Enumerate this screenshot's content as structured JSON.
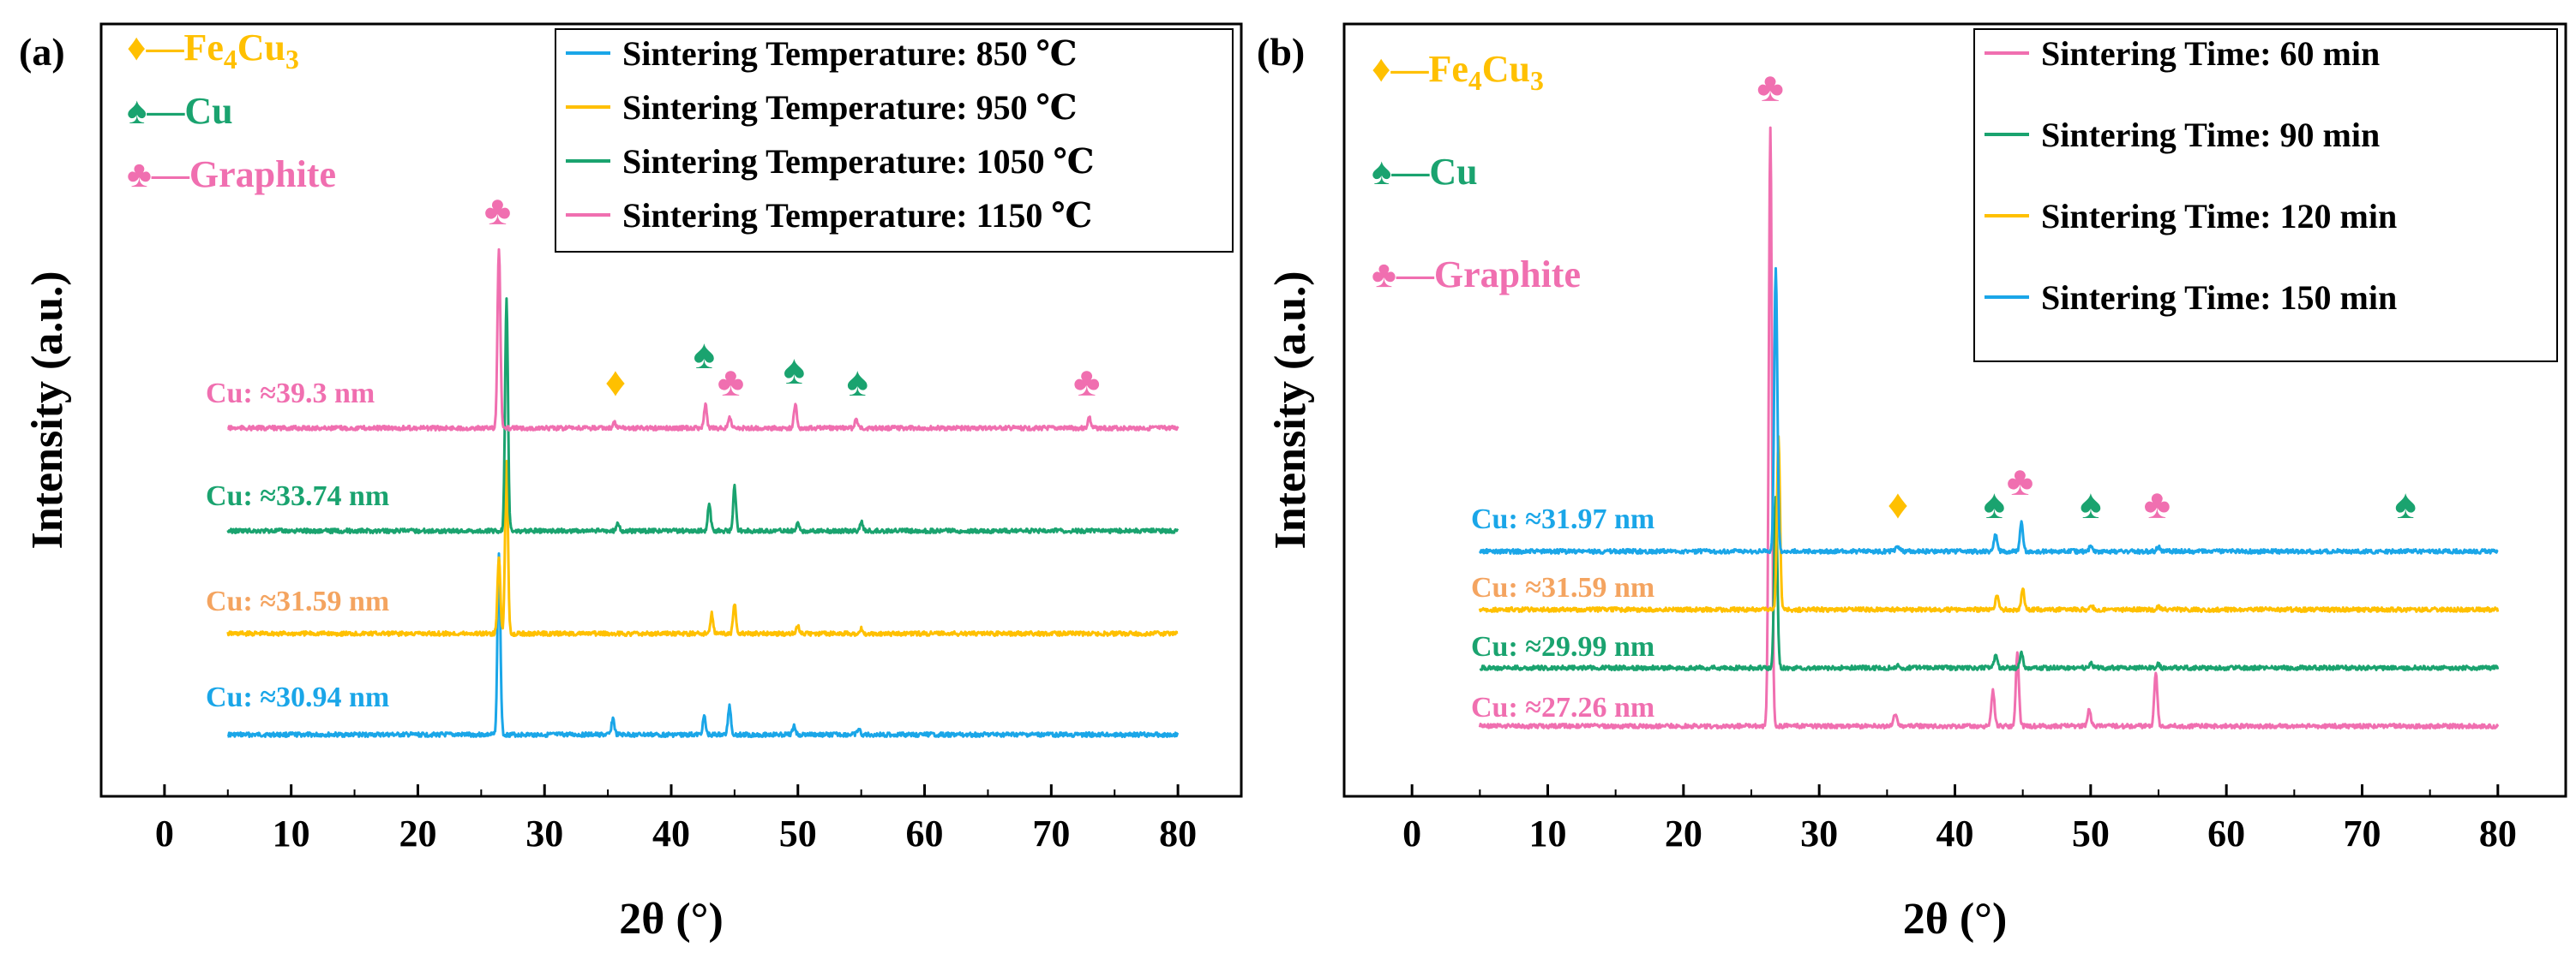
{
  "chart_data": [
    {
      "panel_label": "(a)",
      "type": "line",
      "xlabel": "2θ (°)",
      "ylabel": "Intensity (a.u.)",
      "xlim": [
        -5,
        85
      ],
      "xticks": [
        0,
        10,
        20,
        30,
        40,
        50,
        60,
        70,
        80
      ],
      "x_range": [
        5,
        80
      ],
      "phase_legend": [
        {
          "symbol": "♦",
          "label": "—Fe",
          "sub": "4",
          "label2": "Cu",
          "sub2": "3",
          "color": "#ffc000"
        },
        {
          "symbol": "♠",
          "label": "—Cu",
          "color": "#1aa36f"
        },
        {
          "symbol": "♣",
          "label": "—Graphite",
          "color": "#f06fb0"
        }
      ],
      "series": [
        {
          "name": "Sintering Temperature: 850 ℃",
          "color": "#1aa6e8",
          "annotation": "Cu: ≈30.94 nm",
          "annotation_color": "#1aa6e8",
          "peaks": [
            [
              26.4,
              1.0
            ],
            [
              35.4,
              0.09
            ],
            [
              42.6,
              0.1
            ],
            [
              44.6,
              0.16
            ],
            [
              49.7,
              0.05
            ],
            [
              54.8,
              0.03
            ]
          ]
        },
        {
          "name": "Sintering Temperature: 950 ℃",
          "color": "#ffc000",
          "annotation": "Cu: ≈31.59 nm",
          "annotation_color": "#f4a460",
          "peaks": [
            [
              26.4,
              0.42
            ],
            [
              27.0,
              0.95
            ],
            [
              43.2,
              0.11
            ],
            [
              45.0,
              0.17
            ],
            [
              50.0,
              0.04
            ],
            [
              55.0,
              0.03
            ]
          ]
        },
        {
          "name": "Sintering Temperature: 1050 ℃",
          "color": "#1aa36f",
          "annotation": "Cu: ≈33.74 nm",
          "annotation_color": "#1aa36f",
          "peaks": [
            [
              27.0,
              1.0
            ],
            [
              35.8,
              0.03
            ],
            [
              43.0,
              0.12
            ],
            [
              45.0,
              0.19
            ],
            [
              50.0,
              0.03
            ],
            [
              55.0,
              0.04
            ]
          ]
        },
        {
          "name": "Sintering Temperature: 1150 ℃",
          "color": "#f06fb0",
          "annotation": "Cu: ≈39.3 nm",
          "annotation_color": "#f06fb0",
          "peaks": [
            [
              26.4,
              1.0
            ],
            [
              35.5,
              0.03
            ],
            [
              42.7,
              0.13
            ],
            [
              44.6,
              0.06
            ],
            [
              49.8,
              0.13
            ],
            [
              54.6,
              0.05
            ],
            [
              73.0,
              0.06
            ]
          ]
        }
      ],
      "markers": [
        {
          "symbol": "♣",
          "x": 26.3,
          "color": "#f06fb0",
          "level": "top"
        },
        {
          "symbol": "♦",
          "x": 35.6,
          "color": "#ffc000",
          "level": "low"
        },
        {
          "symbol": "♠",
          "x": 42.6,
          "color": "#1aa36f",
          "level": "high"
        },
        {
          "symbol": "♣",
          "x": 44.7,
          "color": "#f06fb0",
          "level": "low"
        },
        {
          "symbol": "♠",
          "x": 49.7,
          "color": "#1aa36f",
          "level": "mid"
        },
        {
          "symbol": "♠",
          "x": 54.7,
          "color": "#1aa36f",
          "level": "low"
        },
        {
          "symbol": "♣",
          "x": 72.8,
          "color": "#f06fb0",
          "level": "low"
        }
      ]
    },
    {
      "panel_label": "(b)",
      "type": "line",
      "xlabel": "2θ (°)",
      "ylabel": "Intensity (a.u.)",
      "xlim": [
        -5,
        85
      ],
      "xticks": [
        0,
        10,
        20,
        30,
        40,
        50,
        60,
        70,
        80
      ],
      "x_range": [
        5,
        80
      ],
      "phase_legend": [
        {
          "symbol": "♦",
          "label": "—Fe",
          "sub": "4",
          "label2": "Cu",
          "sub2": "3",
          "color": "#ffc000"
        },
        {
          "symbol": "♠",
          "label": "—Cu",
          "color": "#1aa36f"
        },
        {
          "symbol": "♣",
          "label": "—Graphite",
          "color": "#f06fb0"
        }
      ],
      "series": [
        {
          "name": "Sintering Time: 60 min",
          "color": "#f06fb0",
          "annotation": "Cu: ≈27.26 nm",
          "annotation_color": "#f06fb0",
          "peaks": [
            [
              26.4,
              1.0
            ],
            [
              35.6,
              0.02
            ],
            [
              42.8,
              0.06
            ],
            [
              44.6,
              0.12
            ],
            [
              49.9,
              0.03
            ],
            [
              54.8,
              0.09
            ]
          ]
        },
        {
          "name": "Sintering Time: 90 min",
          "color": "#1aa36f",
          "annotation": "Cu: ≈29.99 nm",
          "annotation_color": "#1aa36f",
          "peaks": [
            [
              26.8,
              1.0
            ],
            [
              35.8,
              0.02
            ],
            [
              43.0,
              0.07
            ],
            [
              44.9,
              0.09
            ],
            [
              50.0,
              0.03
            ],
            [
              55.0,
              0.02
            ]
          ]
        },
        {
          "name": "Sintering Time: 120 min",
          "color": "#ffc000",
          "annotation": "Cu: ≈31.59 nm",
          "annotation_color": "#f4a460",
          "peaks": [
            [
              27.0,
              1.0
            ],
            [
              43.1,
              0.08
            ],
            [
              45.0,
              0.12
            ],
            [
              50.1,
              0.02
            ],
            [
              55.0,
              0.02
            ]
          ]
        },
        {
          "name": "Sintering Time: 150 min",
          "color": "#1aa6e8",
          "annotation": "Cu: ≈31.97 nm",
          "annotation_color": "#1aa6e8",
          "peaks": [
            [
              26.8,
              1.0
            ],
            [
              35.8,
              0.02
            ],
            [
              43.0,
              0.06
            ],
            [
              44.9,
              0.1
            ],
            [
              50.0,
              0.02
            ],
            [
              55.0,
              0.02
            ]
          ]
        }
      ],
      "markers": [
        {
          "symbol": "♣",
          "x": 26.4,
          "color": "#f06fb0",
          "level": "top"
        },
        {
          "symbol": "♦",
          "x": 35.8,
          "color": "#ffc000",
          "level": "low"
        },
        {
          "symbol": "♠",
          "x": 42.9,
          "color": "#1aa36f",
          "level": "low"
        },
        {
          "symbol": "♣",
          "x": 44.8,
          "color": "#f06fb0",
          "level": "mid"
        },
        {
          "symbol": "♠",
          "x": 50.0,
          "color": "#1aa36f",
          "level": "low"
        },
        {
          "symbol": "♣",
          "x": 54.9,
          "color": "#f06fb0",
          "level": "low"
        },
        {
          "symbol": "♠",
          "x": 73.2,
          "color": "#1aa36f",
          "level": "low"
        }
      ]
    }
  ]
}
